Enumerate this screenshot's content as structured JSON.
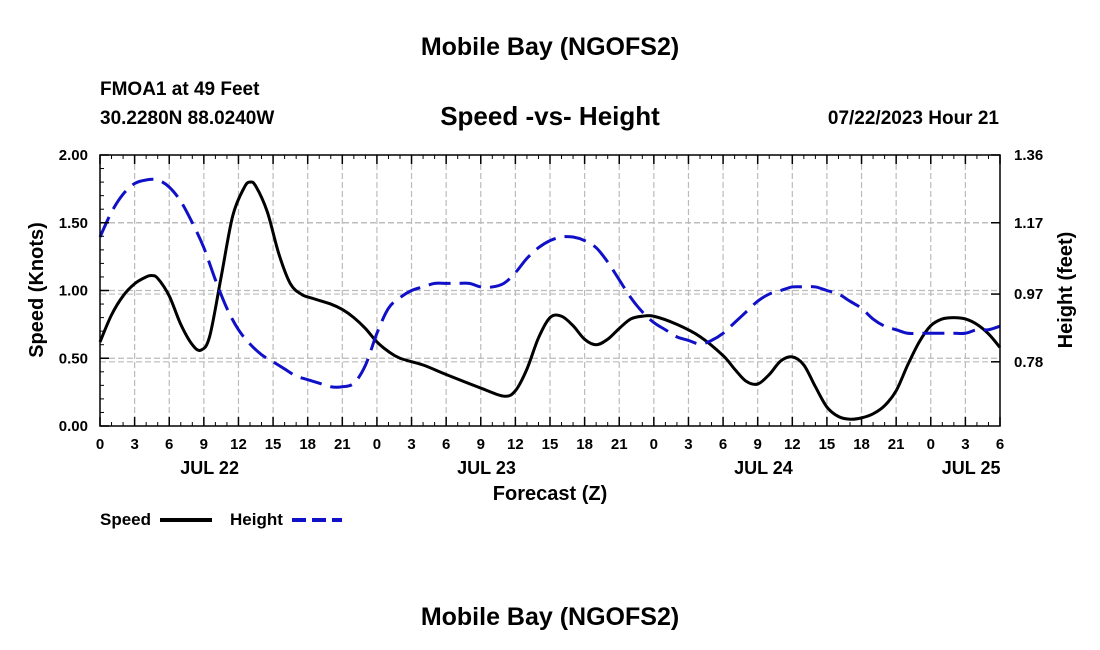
{
  "header": {
    "title": "Mobile Bay (NGOFS2)",
    "station": "FMOA1 at 49 Feet",
    "coords": "30.2280N  88.0240W",
    "timestamp": "07/22/2023 Hour 21",
    "footer_title": "Mobile Bay (NGOFS2)"
  },
  "colors": {
    "speed": "#000000",
    "height": "#1010c8",
    "grid": "#bbbbbb"
  },
  "chart_data": {
    "type": "line",
    "title": "Speed -vs- Height",
    "xlabel": "Forecast (Z)",
    "ylabel": "Speed (Knots)",
    "y2label": "Height (feet)",
    "x_unit": "forecast hours since 00Z Jul 22",
    "xlim": [
      0,
      78
    ],
    "ylim": [
      0,
      2.0
    ],
    "y2lim": [
      0.6,
      1.36
    ],
    "x_ticks": [
      0,
      3,
      6,
      9,
      12,
      15,
      18,
      21,
      24,
      27,
      30,
      33,
      36,
      39,
      42,
      45,
      48,
      51,
      54,
      57,
      60,
      63,
      66,
      69,
      72,
      75,
      78
    ],
    "x_tick_labels": [
      "0",
      "3",
      "6",
      "9",
      "12",
      "15",
      "18",
      "21",
      "0",
      "3",
      "6",
      "9",
      "12",
      "15",
      "18",
      "21",
      "0",
      "3",
      "6",
      "9",
      "12",
      "15",
      "18",
      "21",
      "0",
      "3",
      "6"
    ],
    "y_ticks": [
      0,
      0.5,
      1.0,
      1.5,
      2.0
    ],
    "y_tick_labels": [
      "0.00",
      "0.50",
      "1.00",
      "1.50",
      "2.00"
    ],
    "y2_ticks": [
      0.78,
      0.97,
      1.17,
      1.36
    ],
    "y2_tick_labels": [
      "0.78",
      "0.97",
      "1.17",
      "1.36"
    ],
    "date_labels": [
      {
        "label": "JUL 22",
        "x": 9.5
      },
      {
        "label": "JUL 23",
        "x": 33.5
      },
      {
        "label": "JUL 24",
        "x": 57.5
      },
      {
        "label": "JUL 25",
        "x": 75.5
      }
    ],
    "grid": true,
    "legend_position": "bottom-left",
    "series": [
      {
        "name": "Speed",
        "axis": "left",
        "style": "solid",
        "x": [
          0,
          1,
          2,
          3,
          4,
          4.5,
          5,
          6,
          7,
          8,
          8.75,
          9.5,
          10.5,
          11.5,
          12.5,
          13,
          13.5,
          14.5,
          15.5,
          16.5,
          17.5,
          18.5,
          20,
          21,
          22,
          23,
          24,
          25,
          26,
          28,
          30,
          33,
          35,
          36,
          37,
          38,
          39,
          40,
          41,
          42,
          43,
          44,
          45,
          46,
          47,
          48,
          50,
          52,
          54,
          55,
          56,
          57,
          58,
          59,
          60,
          61,
          62,
          63,
          64,
          65,
          66,
          67,
          68,
          69,
          70,
          71,
          72,
          73,
          74,
          75,
          76,
          77,
          78
        ],
        "values": [
          0.62,
          0.82,
          0.96,
          1.05,
          1.1,
          1.11,
          1.09,
          0.96,
          0.75,
          0.6,
          0.56,
          0.66,
          1.1,
          1.55,
          1.76,
          1.8,
          1.77,
          1.58,
          1.27,
          1.05,
          0.97,
          0.94,
          0.9,
          0.86,
          0.8,
          0.72,
          0.62,
          0.55,
          0.5,
          0.45,
          0.38,
          0.28,
          0.22,
          0.26,
          0.42,
          0.65,
          0.8,
          0.81,
          0.74,
          0.64,
          0.6,
          0.64,
          0.72,
          0.79,
          0.81,
          0.81,
          0.75,
          0.66,
          0.52,
          0.42,
          0.33,
          0.31,
          0.38,
          0.48,
          0.51,
          0.45,
          0.29,
          0.14,
          0.07,
          0.05,
          0.06,
          0.09,
          0.15,
          0.26,
          0.45,
          0.62,
          0.74,
          0.79,
          0.8,
          0.79,
          0.75,
          0.68,
          0.58
        ]
      },
      {
        "name": "Height",
        "axis": "right",
        "style": "dashed",
        "x": [
          0,
          1,
          2,
          3,
          4,
          5,
          6,
          7,
          8,
          9,
          10,
          11,
          12,
          13,
          14,
          15,
          16,
          17,
          18,
          19,
          20,
          21,
          22,
          23,
          24,
          25,
          26,
          27,
          28,
          29,
          30,
          31,
          32,
          33,
          34,
          35,
          36,
          37,
          38,
          39,
          40,
          41,
          42,
          43,
          44,
          45,
          46,
          47,
          48,
          49,
          50,
          51,
          52,
          53,
          54,
          55,
          56,
          57,
          58,
          59,
          60,
          61,
          62,
          63,
          64,
          65,
          66,
          67,
          68,
          69,
          70,
          71,
          72,
          73,
          74,
          75,
          76,
          77,
          78
        ],
        "values": [
          1.13,
          1.2,
          1.25,
          1.28,
          1.29,
          1.29,
          1.27,
          1.23,
          1.17,
          1.1,
          1.01,
          0.93,
          0.87,
          0.83,
          0.8,
          0.78,
          0.76,
          0.74,
          0.73,
          0.72,
          0.71,
          0.71,
          0.72,
          0.77,
          0.86,
          0.93,
          0.96,
          0.98,
          0.99,
          1.0,
          1.0,
          1.0,
          1.0,
          0.99,
          0.99,
          1.0,
          1.03,
          1.07,
          1.1,
          1.12,
          1.13,
          1.13,
          1.12,
          1.1,
          1.06,
          1.01,
          0.96,
          0.92,
          0.89,
          0.87,
          0.85,
          0.84,
          0.83,
          0.84,
          0.86,
          0.89,
          0.92,
          0.95,
          0.97,
          0.98,
          0.99,
          0.99,
          0.99,
          0.98,
          0.97,
          0.95,
          0.93,
          0.9,
          0.88,
          0.87,
          0.86,
          0.86,
          0.86,
          0.86,
          0.86,
          0.86,
          0.87,
          0.87,
          0.88
        ]
      }
    ]
  }
}
